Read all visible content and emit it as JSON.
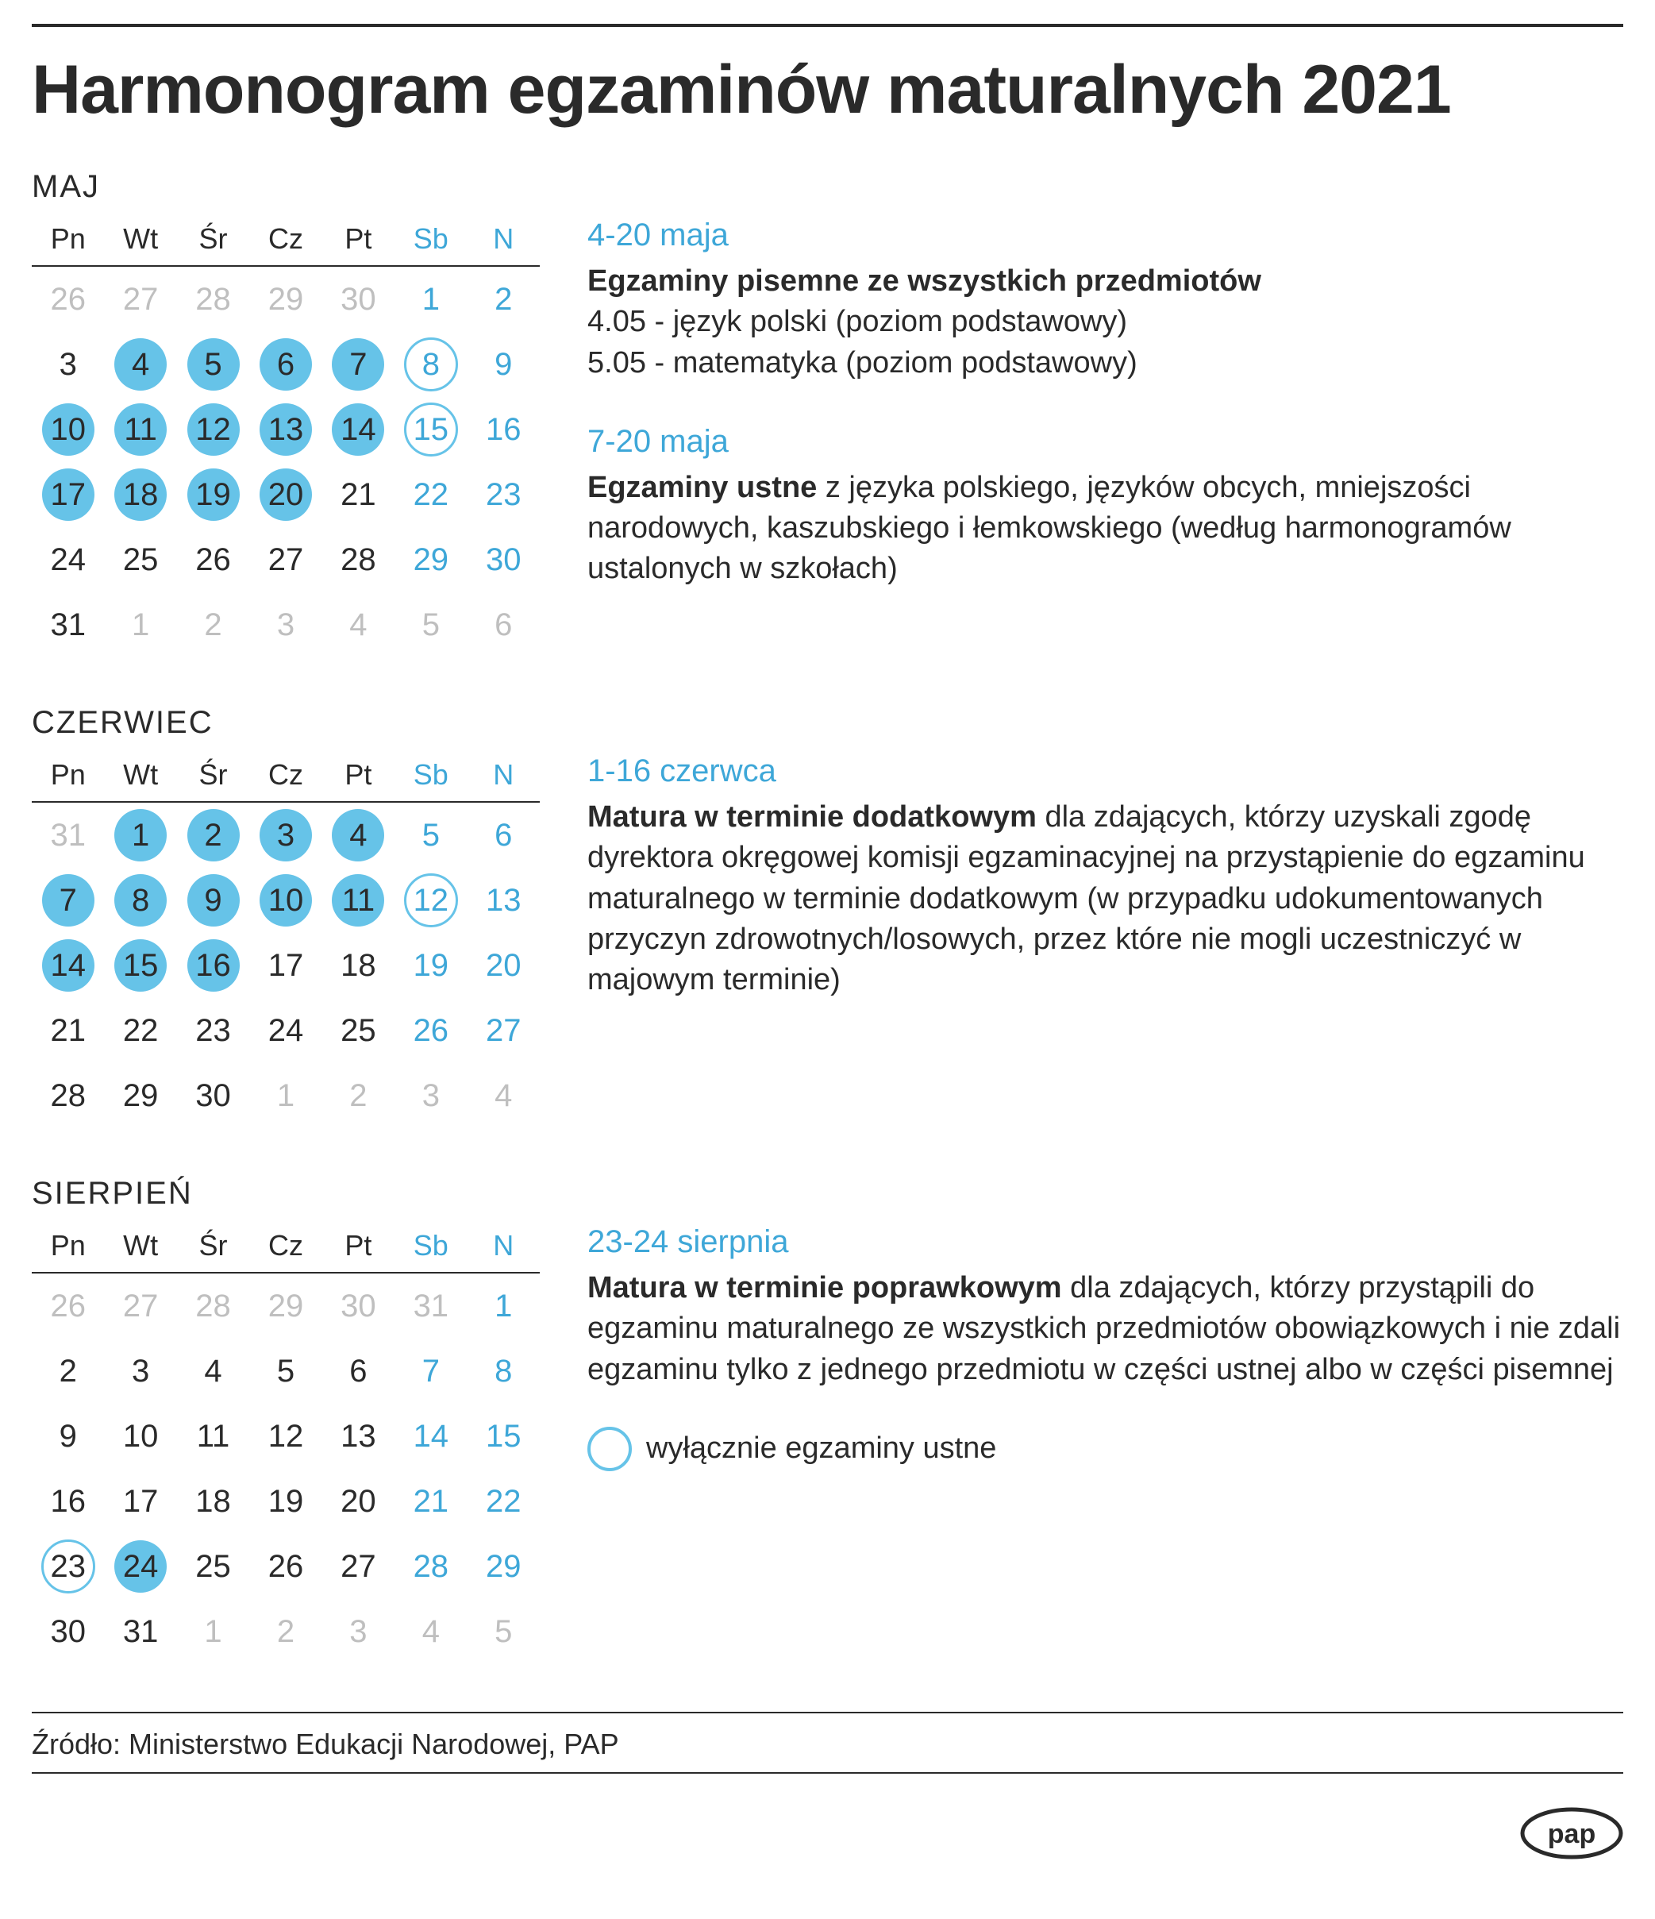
{
  "title": "Harmonogram egzaminów maturalnych 2021",
  "day_headers": [
    "Pn",
    "Wt",
    "Śr",
    "Cz",
    "Pt",
    "Sb",
    "N"
  ],
  "colors": {
    "accent": "#66c3e8",
    "weekend": "#3ea7d8",
    "muted": "#bfbfbf",
    "text": "#2a2a2a"
  },
  "months": [
    {
      "label": "MAJ",
      "grid": [
        [
          {
            "n": 26,
            "out": true
          },
          {
            "n": 27,
            "out": true
          },
          {
            "n": 28,
            "out": true
          },
          {
            "n": 29,
            "out": true
          },
          {
            "n": 30,
            "out": true
          },
          {
            "n": 1,
            "we": true
          },
          {
            "n": 2,
            "we": true
          }
        ],
        [
          {
            "n": 3
          },
          {
            "n": 4,
            "filled": true
          },
          {
            "n": 5,
            "filled": true
          },
          {
            "n": 6,
            "filled": true
          },
          {
            "n": 7,
            "filled": true
          },
          {
            "n": 8,
            "we": true,
            "outline": true
          },
          {
            "n": 9,
            "we": true
          }
        ],
        [
          {
            "n": 10,
            "filled": true
          },
          {
            "n": 11,
            "filled": true
          },
          {
            "n": 12,
            "filled": true
          },
          {
            "n": 13,
            "filled": true
          },
          {
            "n": 14,
            "filled": true
          },
          {
            "n": 15,
            "we": true,
            "outline": true
          },
          {
            "n": 16,
            "we": true
          }
        ],
        [
          {
            "n": 17,
            "filled": true
          },
          {
            "n": 18,
            "filled": true
          },
          {
            "n": 19,
            "filled": true
          },
          {
            "n": 20,
            "filled": true
          },
          {
            "n": 21
          },
          {
            "n": 22,
            "we": true
          },
          {
            "n": 23,
            "we": true
          }
        ],
        [
          {
            "n": 24
          },
          {
            "n": 25
          },
          {
            "n": 26
          },
          {
            "n": 27
          },
          {
            "n": 28
          },
          {
            "n": 29,
            "we": true
          },
          {
            "n": 30,
            "we": true
          }
        ],
        [
          {
            "n": 31
          },
          {
            "n": 1,
            "out": true
          },
          {
            "n": 2,
            "out": true
          },
          {
            "n": 3,
            "out": true
          },
          {
            "n": 4,
            "out": true
          },
          {
            "n": 5,
            "out": true
          },
          {
            "n": 6,
            "out": true
          }
        ]
      ],
      "desc": [
        {
          "range": "4-20 maja",
          "bold": "Egzaminy pisemne ze wszystkich przedmiotów",
          "text_after": "",
          "lines": [
            "4.05 - język polski (poziom podstawowy)",
            "5.05 - matematyka (poziom podstawowy)"
          ]
        },
        {
          "range": "7-20 maja",
          "bold": "Egzaminy ustne",
          "text_after": " z języka polskiego, języków obcych, mniejszości narodowych, kaszubskiego i łemkowskiego (według harmonogramów ustalonych w szkołach)",
          "lines": []
        }
      ]
    },
    {
      "label": "CZERWIEC",
      "grid": [
        [
          {
            "n": 31,
            "out": true
          },
          {
            "n": 1,
            "filled": true
          },
          {
            "n": 2,
            "filled": true
          },
          {
            "n": 3,
            "filled": true
          },
          {
            "n": 4,
            "filled": true
          },
          {
            "n": 5,
            "we": true
          },
          {
            "n": 6,
            "we": true
          }
        ],
        [
          {
            "n": 7,
            "filled": true
          },
          {
            "n": 8,
            "filled": true
          },
          {
            "n": 9,
            "filled": true
          },
          {
            "n": 10,
            "filled": true
          },
          {
            "n": 11,
            "filled": true
          },
          {
            "n": 12,
            "we": true,
            "outline": true
          },
          {
            "n": 13,
            "we": true
          }
        ],
        [
          {
            "n": 14,
            "filled": true
          },
          {
            "n": 15,
            "filled": true
          },
          {
            "n": 16,
            "filled": true
          },
          {
            "n": 17
          },
          {
            "n": 18
          },
          {
            "n": 19,
            "we": true
          },
          {
            "n": 20,
            "we": true
          }
        ],
        [
          {
            "n": 21
          },
          {
            "n": 22
          },
          {
            "n": 23
          },
          {
            "n": 24
          },
          {
            "n": 25
          },
          {
            "n": 26,
            "we": true
          },
          {
            "n": 27,
            "we": true
          }
        ],
        [
          {
            "n": 28
          },
          {
            "n": 29
          },
          {
            "n": 30
          },
          {
            "n": 1,
            "out": true
          },
          {
            "n": 2,
            "out": true
          },
          {
            "n": 3,
            "out": true
          },
          {
            "n": 4,
            "out": true
          }
        ]
      ],
      "desc": [
        {
          "range": "1-16 czerwca",
          "bold": "Matura w terminie dodatkowym",
          "text_after": " dla zdających, którzy uzyskali zgodę dyrektora okręgowej komisji egzaminacyjnej na przystąpienie do egzaminu maturalnego w terminie dodatkowym (w przypadku udokumentowanych przyczyn zdrowotnych/losowych, przez które nie mogli uczestniczyć w majowym terminie)",
          "lines": []
        }
      ]
    },
    {
      "label": "SIERPIEŃ",
      "grid": [
        [
          {
            "n": 26,
            "out": true
          },
          {
            "n": 27,
            "out": true
          },
          {
            "n": 28,
            "out": true
          },
          {
            "n": 29,
            "out": true
          },
          {
            "n": 30,
            "out": true
          },
          {
            "n": 31,
            "out": true
          },
          {
            "n": 1,
            "we": true
          }
        ],
        [
          {
            "n": 2
          },
          {
            "n": 3
          },
          {
            "n": 4
          },
          {
            "n": 5
          },
          {
            "n": 6
          },
          {
            "n": 7,
            "we": true
          },
          {
            "n": 8,
            "we": true
          }
        ],
        [
          {
            "n": 9
          },
          {
            "n": 10
          },
          {
            "n": 11
          },
          {
            "n": 12
          },
          {
            "n": 13
          },
          {
            "n": 14,
            "we": true
          },
          {
            "n": 15,
            "we": true
          }
        ],
        [
          {
            "n": 16
          },
          {
            "n": 17
          },
          {
            "n": 18
          },
          {
            "n": 19
          },
          {
            "n": 20
          },
          {
            "n": 21,
            "we": true
          },
          {
            "n": 22,
            "we": true
          }
        ],
        [
          {
            "n": 23,
            "outline": true
          },
          {
            "n": 24,
            "filled": true
          },
          {
            "n": 25
          },
          {
            "n": 26
          },
          {
            "n": 27
          },
          {
            "n": 28,
            "we": true
          },
          {
            "n": 29,
            "we": true
          }
        ],
        [
          {
            "n": 30
          },
          {
            "n": 31
          },
          {
            "n": 1,
            "out": true
          },
          {
            "n": 2,
            "out": true
          },
          {
            "n": 3,
            "out": true
          },
          {
            "n": 4,
            "out": true
          },
          {
            "n": 5,
            "out": true
          }
        ]
      ],
      "desc": [
        {
          "range": "23-24 sierpnia",
          "bold": "Matura w terminie poprawkowym",
          "text_after": " dla zdających, którzy przystąpili do egzaminu maturalnego ze wszystkich przedmiotów obowiązkowych i nie zdali egzaminu tylko z jednego przedmiotu w części ustnej albo w części pisemnej",
          "lines": []
        }
      ],
      "legend": "wyłącznie egzaminy ustne"
    }
  ],
  "source": "Źródło: Ministerstwo Edukacji Narodowej, PAP",
  "logo_text": "pap"
}
